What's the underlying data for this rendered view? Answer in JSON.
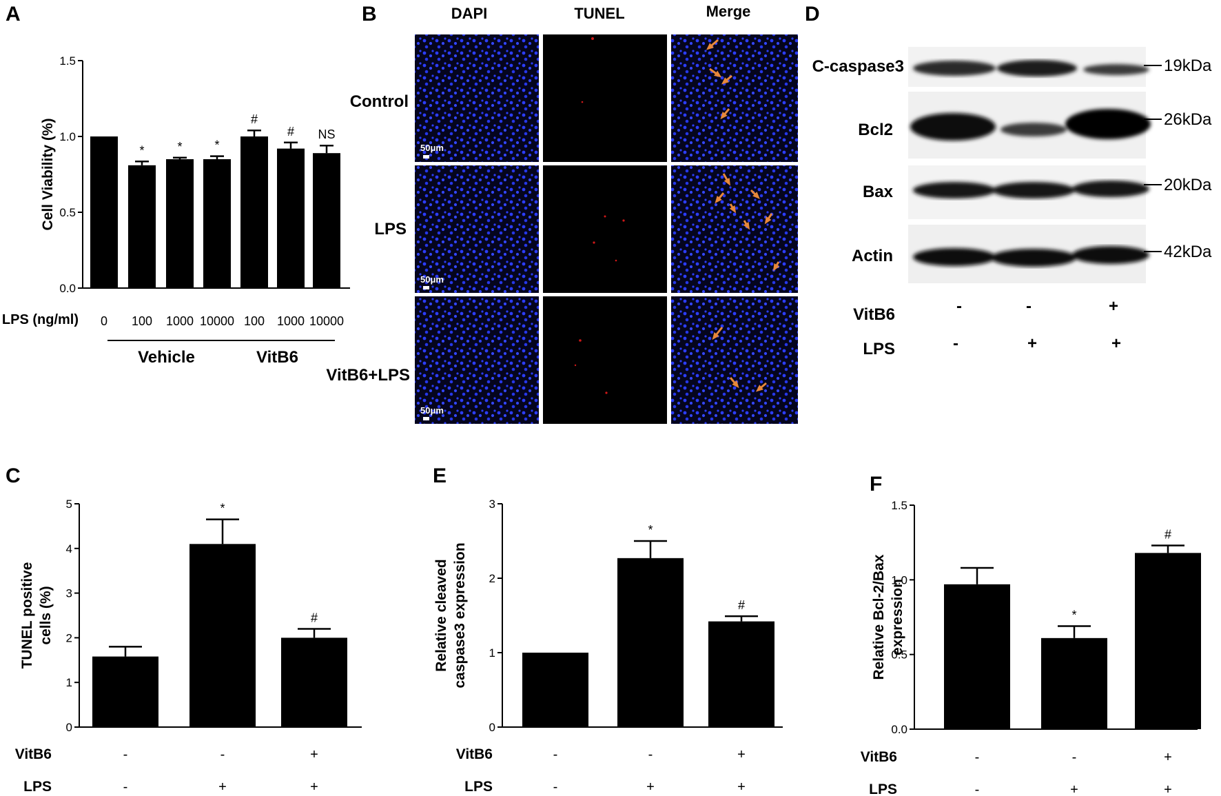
{
  "panels": {
    "A": "A",
    "B": "B",
    "C": "C",
    "D": "D",
    "E": "E",
    "F": "F"
  },
  "chart_data": [
    {
      "panel": "A",
      "type": "bar",
      "ylabel": "Cell Viability (%)",
      "ylim": [
        0,
        1.5
      ],
      "yticks": [
        "0.0",
        "0.5",
        "1.0",
        "1.5"
      ],
      "x_axis_title": "LPS (ng/ml)",
      "categories": [
        "0",
        "100",
        "1000",
        "10000",
        "100",
        "1000",
        "10000"
      ],
      "values": [
        1.0,
        0.81,
        0.85,
        0.85,
        1.0,
        0.92,
        0.89
      ],
      "errors": [
        0.0,
        0.025,
        0.01,
        0.02,
        0.04,
        0.04,
        0.05
      ],
      "annotations": [
        "",
        "*",
        "*",
        "*",
        "#",
        "#",
        "NS"
      ],
      "groups": [
        {
          "label": "Vehicle",
          "from": 1,
          "to": 3
        },
        {
          "label": "VitB6",
          "from": 4,
          "to": 6
        }
      ]
    },
    {
      "panel": "C",
      "type": "bar",
      "ylabel_lines": [
        "TUNEL positive",
        "cells (%)"
      ],
      "ylim": [
        0,
        5
      ],
      "yticks": [
        "0",
        "1",
        "2",
        "3",
        "4",
        "5"
      ],
      "values": [
        1.58,
        4.1,
        2.0
      ],
      "errors": [
        0.22,
        0.55,
        0.2
      ],
      "annotations": [
        "",
        "*",
        "#"
      ],
      "rows": [
        {
          "label": "VitB6",
          "signs": [
            "-",
            "-",
            "+"
          ]
        },
        {
          "label": "LPS",
          "signs": [
            "-",
            "+",
            "+"
          ]
        }
      ]
    },
    {
      "panel": "E",
      "type": "bar",
      "ylabel_lines": [
        "Relative cleaved",
        "caspase3 expression"
      ],
      "ylim": [
        0,
        3
      ],
      "yticks": [
        "0",
        "1",
        "2",
        "3"
      ],
      "values": [
        1.0,
        2.27,
        1.42
      ],
      "errors": [
        0.0,
        0.23,
        0.07
      ],
      "annotations": [
        "",
        "*",
        "#"
      ],
      "rows": [
        {
          "label": "VitB6",
          "signs": [
            "-",
            "-",
            "+"
          ]
        },
        {
          "label": "LPS",
          "signs": [
            "-",
            "+",
            "+"
          ]
        }
      ]
    },
    {
      "panel": "F",
      "type": "bar",
      "ylabel_lines": [
        "Relative Bcl-2/Bax",
        "expression"
      ],
      "ylim": [
        0,
        1.5
      ],
      "yticks": [
        "0.0",
        "0.5",
        "1.0",
        "1.5"
      ],
      "values": [
        0.97,
        0.61,
        1.18
      ],
      "errors": [
        0.11,
        0.08,
        0.05
      ],
      "annotations": [
        "",
        "*",
        "#"
      ],
      "rows": [
        {
          "label": "VitB6",
          "signs": [
            "-",
            "-",
            "+"
          ]
        },
        {
          "label": "LPS",
          "signs": [
            "-",
            "+",
            "+"
          ]
        }
      ]
    }
  ],
  "microscopy": {
    "columns": [
      "DAPI",
      "TUNEL",
      "Merge"
    ],
    "rows": [
      "Control",
      "LPS",
      "VitB6+LPS"
    ],
    "scale_bar": "50μm"
  },
  "western": {
    "bands": [
      {
        "label": "C-caspase3",
        "size": "19kDa"
      },
      {
        "label": "Bcl2",
        "size": "26kDa"
      },
      {
        "label": "Bax",
        "size": "20kDa"
      },
      {
        "label": "Actin",
        "size": "42kDa"
      }
    ],
    "rows": [
      {
        "label": "VitB6",
        "signs": [
          "-",
          "-",
          "+"
        ]
      },
      {
        "label": "LPS",
        "signs": [
          "-",
          "+",
          "+"
        ]
      }
    ]
  },
  "colors": {
    "bar": "#000000",
    "nuclei": "#2a3cff",
    "tunel": "#ff2020",
    "arrow": "#e8883a"
  }
}
